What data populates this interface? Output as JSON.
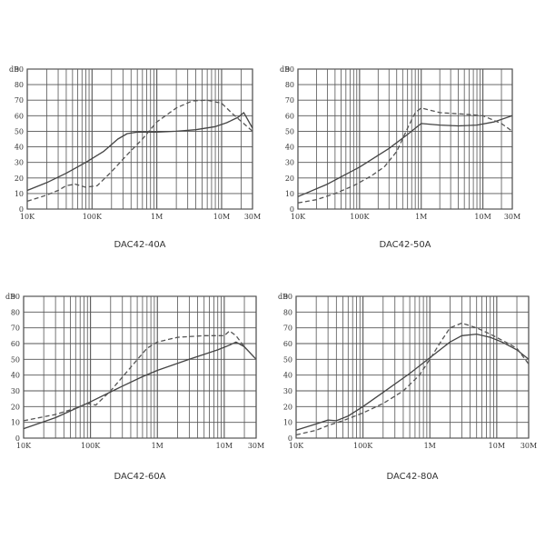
{
  "colors": {
    "grid": "#555555",
    "solid": "#444444",
    "dashed": "#555555",
    "text": "#333333"
  },
  "chart_data": [
    {
      "type": "line",
      "title": "DAC42-40A",
      "ylabel": "dB",
      "xscale": "log",
      "xlim": [
        10000,
        30000000
      ],
      "ylim": [
        0,
        90
      ],
      "yticks": [
        0,
        10,
        20,
        30,
        40,
        50,
        60,
        70,
        80,
        90
      ],
      "xtick_labels": [
        "10K",
        "100K",
        "1M",
        "10M",
        "30M"
      ],
      "grid": true,
      "series": [
        {
          "style": "solid",
          "x": [
            10000,
            20000,
            40000,
            80000,
            150000,
            250000,
            350000,
            500000,
            1000000,
            2000000,
            4000000,
            8000000,
            12000000,
            18000000,
            22000000,
            30000000
          ],
          "y": [
            12,
            17,
            23,
            30,
            37,
            45,
            48.5,
            49.5,
            49.5,
            50,
            51,
            53,
            55.5,
            59,
            62,
            52
          ]
        },
        {
          "style": "dashed",
          "x": [
            10000,
            20000,
            30000,
            40000,
            55000,
            80000,
            120000,
            200000,
            350000,
            600000,
            1000000,
            2000000,
            3500000,
            6000000,
            10000000,
            15000000,
            30000000
          ],
          "y": [
            5,
            9,
            12,
            15,
            16,
            14,
            15,
            24,
            35,
            45,
            56,
            65,
            69.5,
            70,
            68,
            61,
            50
          ]
        }
      ]
    },
    {
      "type": "line",
      "title": "DAC42-50A",
      "ylabel": "dB",
      "xscale": "log",
      "xlim": [
        10000,
        30000000
      ],
      "ylim": [
        0,
        90
      ],
      "yticks": [
        0,
        10,
        20,
        30,
        40,
        50,
        60,
        70,
        80,
        90
      ],
      "xtick_labels": [
        "10K",
        "100K",
        "1M",
        "10M",
        "30M"
      ],
      "grid": true,
      "series": [
        {
          "style": "solid",
          "x": [
            10000,
            30000,
            100000,
            300000,
            600000,
            1000000,
            2000000,
            4000000,
            8000000,
            15000000,
            30000000
          ],
          "y": [
            8,
            16,
            27,
            39,
            48,
            55,
            54,
            53.5,
            54,
            56,
            60
          ]
        },
        {
          "style": "dashed",
          "x": [
            10000,
            20000,
            40000,
            80000,
            150000,
            250000,
            400000,
            600000,
            800000,
            1000000,
            2000000,
            5000000,
            10000000,
            20000000,
            30000000
          ],
          "y": [
            4,
            6,
            10,
            15,
            21,
            27,
            37,
            52,
            62,
            65,
            62,
            61,
            60,
            55,
            50
          ]
        }
      ]
    },
    {
      "type": "line",
      "title": "DAC42-60A",
      "ylabel": "dB",
      "xscale": "log",
      "xlim": [
        10000,
        30000000
      ],
      "ylim": [
        0,
        90
      ],
      "yticks": [
        0,
        10,
        20,
        30,
        40,
        50,
        60,
        70,
        80,
        90
      ],
      "xtick_labels": [
        "10K",
        "100K",
        "1M",
        "10M",
        "30M"
      ],
      "grid": true,
      "series": [
        {
          "style": "solid",
          "x": [
            10000,
            30000,
            100000,
            300000,
            600000,
            1000000,
            3000000,
            8000000,
            12000000,
            15000000,
            20000000,
            30000000
          ],
          "y": [
            6,
            13,
            23,
            33,
            39,
            43,
            50,
            56,
            59,
            61,
            58,
            50
          ]
        },
        {
          "style": "dashed",
          "x": [
            10000,
            30000,
            60000,
            90000,
            120000,
            200000,
            400000,
            700000,
            1000000,
            2000000,
            5000000,
            10000000,
            12000000,
            15000000,
            20000000,
            30000000
          ],
          "y": [
            11,
            15,
            19,
            22,
            21,
            30,
            45,
            57,
            61,
            64,
            65,
            65,
            68,
            65,
            58,
            50
          ]
        }
      ]
    },
    {
      "type": "line",
      "title": "DAC42-80A",
      "ylabel": "dB",
      "xscale": "log",
      "xlim": [
        10000,
        30000000
      ],
      "ylim": [
        0,
        90
      ],
      "yticks": [
        0,
        10,
        20,
        30,
        40,
        50,
        60,
        70,
        80,
        90
      ],
      "xtick_labels": [
        "10K",
        "100K",
        "1M",
        "10M",
        "30M"
      ],
      "grid": true,
      "series": [
        {
          "style": "solid",
          "x": [
            10000,
            20000,
            30000,
            40000,
            60000,
            100000,
            200000,
            500000,
            1000000,
            2000000,
            3000000,
            5000000,
            8000000,
            12000000,
            20000000,
            30000000
          ],
          "y": [
            5,
            9,
            11.5,
            11,
            14,
            20,
            29,
            41,
            51,
            61,
            65,
            66,
            64,
            61,
            56,
            50
          ]
        },
        {
          "style": "dashed",
          "x": [
            10000,
            20000,
            30000,
            50000,
            100000,
            200000,
            400000,
            700000,
            1000000,
            1500000,
            2000000,
            3000000,
            5000000,
            8000000,
            15000000,
            20000000,
            30000000
          ],
          "y": [
            2,
            5,
            8,
            11,
            16,
            22,
            30,
            40,
            50,
            62,
            70,
            73,
            70,
            66,
            60,
            57,
            47
          ]
        }
      ]
    }
  ]
}
